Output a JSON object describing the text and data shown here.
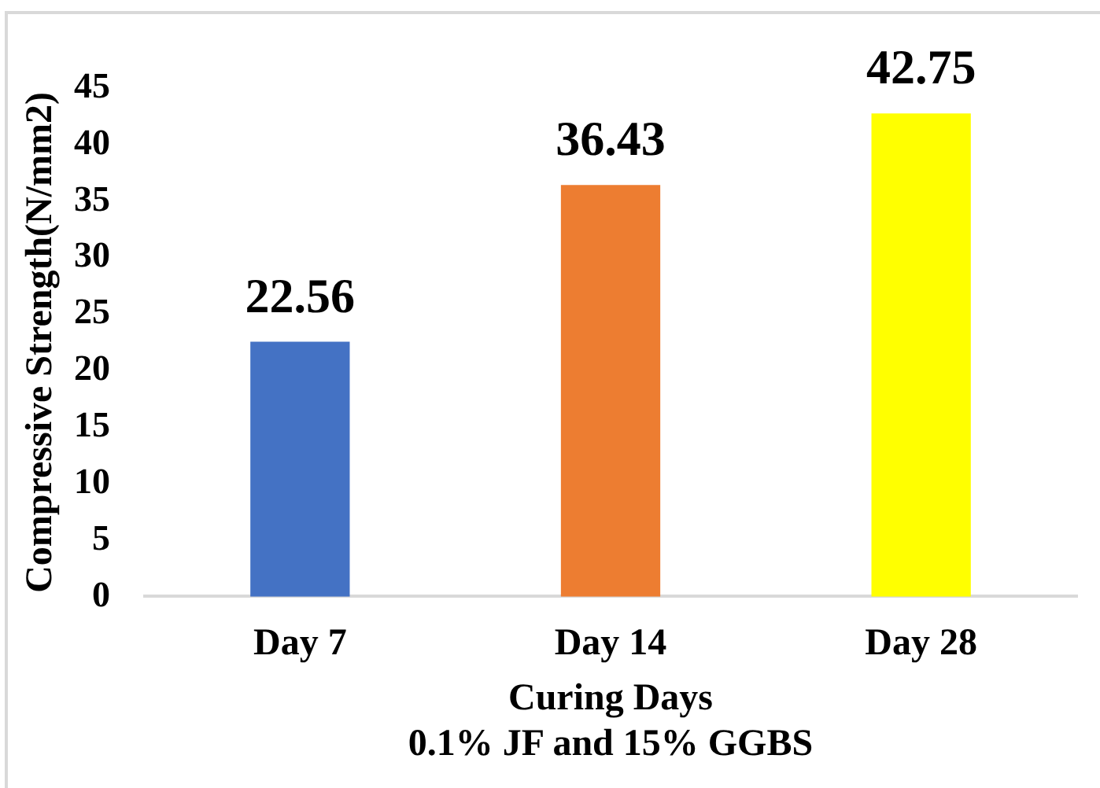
{
  "chart_data": {
    "type": "bar",
    "categories": [
      "Day 7",
      "Day 14",
      "Day 28"
    ],
    "values": [
      22.56,
      36.43,
      42.75
    ],
    "colors": [
      "#4472c4",
      "#ed7d31",
      "#ffff00"
    ],
    "xlabel": "Curing Days",
    "ylabel": "Compressive Strength(N/mm2)",
    "annotations": [
      "0.1% JF and 15% GGBS"
    ],
    "ylim": [
      0,
      45
    ],
    "yticks": [
      0,
      5,
      10,
      15,
      20,
      25,
      30,
      35,
      40,
      45
    ],
    "grid": false,
    "legend": false,
    "data_labels": true
  }
}
